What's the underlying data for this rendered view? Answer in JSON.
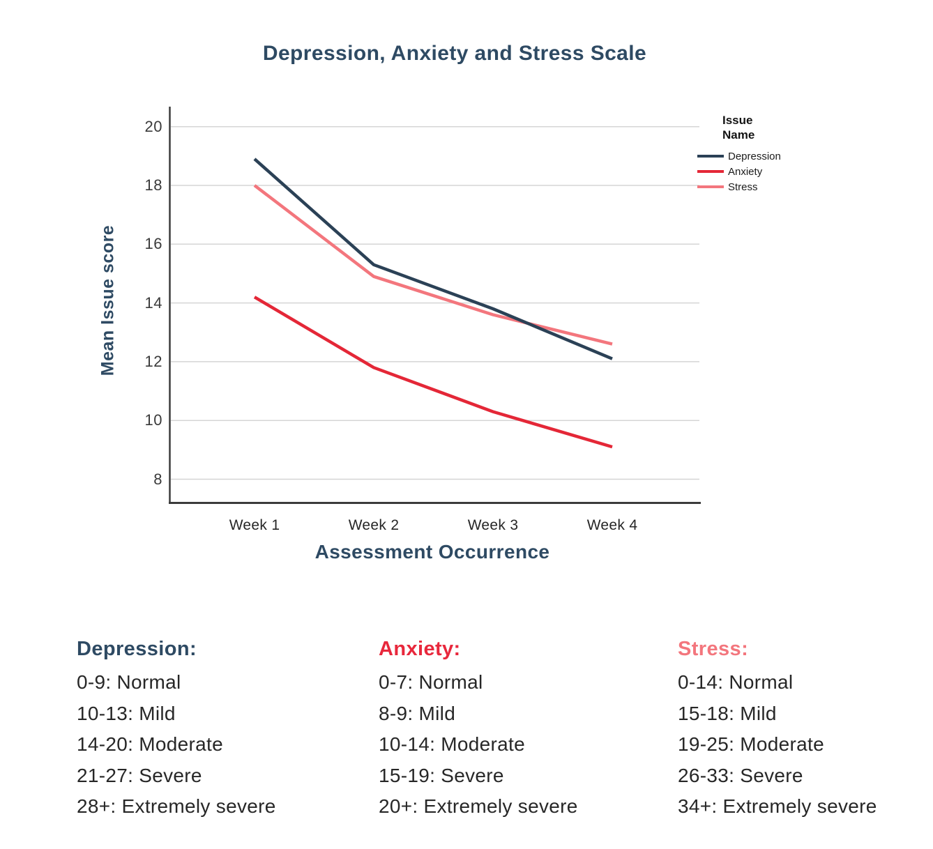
{
  "chart": {
    "title": "Depression, Anxiety and Stress Scale",
    "y_axis_title": "Mean Issue score",
    "x_axis_title": "Assessment Occurrence",
    "legend_title": "Issue Name",
    "colors": {
      "title_text": "#2e4a63",
      "grid": "#d5d5d5",
      "axis": "#3b3b3b",
      "tick_text": "#3a3a3a"
    }
  },
  "chart_data": {
    "type": "line",
    "title": "Depression, Anxiety and Stress Scale",
    "xlabel": "Assessment Occurrence",
    "ylabel": "Mean Issue score",
    "categories": [
      "Week 1",
      "Week 2",
      "Week 3",
      "Week 4"
    ],
    "series": [
      {
        "name": "Depression",
        "color": "#2b4156",
        "values": [
          18.9,
          15.3,
          13.8,
          12.1
        ]
      },
      {
        "name": "Anxiety",
        "color": "#e42737",
        "values": [
          14.2,
          11.8,
          10.3,
          9.1
        ]
      },
      {
        "name": "Stress",
        "color": "#f3767d",
        "values": [
          18.0,
          14.9,
          13.6,
          12.6
        ]
      }
    ],
    "y_ticks": [
      20,
      18,
      16,
      14,
      12,
      10,
      8
    ],
    "ylim": [
      7.2,
      20.7
    ],
    "grid": "horizontal",
    "legend_position": "right",
    "legend_title": "Issue Name"
  },
  "severity_scales": {
    "columns": [
      {
        "title": "Depression:",
        "title_color": "#2e4a63",
        "items": [
          "0-9: Normal",
          "10-13: Mild",
          "14-20: Moderate",
          "21-27: Severe",
          "28+: Extremely severe"
        ]
      },
      {
        "title": "Anxiety:",
        "title_color": "#e8283c",
        "items": [
          "0-7: Normal",
          "8-9: Mild",
          "10-14: Moderate",
          "15-19: Severe",
          "20+: Extremely severe"
        ]
      },
      {
        "title": "Stress:",
        "title_color": "#f3767d",
        "items": [
          "0-14: Normal",
          "15-18: Mild",
          "19-25: Moderate",
          "26-33: Severe",
          "34+: Extremely severe"
        ]
      }
    ]
  }
}
